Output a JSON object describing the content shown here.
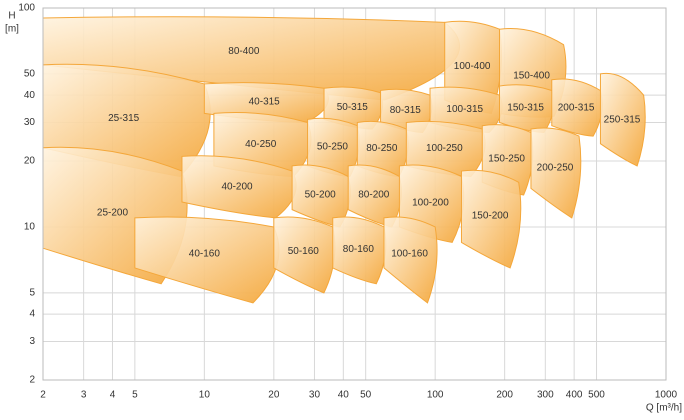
{
  "chart_data": {
    "type": "region-map",
    "ylabel": [
      "H",
      "[m]"
    ],
    "xlabel": "Q [m³/h]",
    "xscale": "log",
    "yscale": "log",
    "grid": true,
    "color": "#f4a73a",
    "xlim": [
      2,
      1000
    ],
    "xticks": [
      2,
      3,
      4,
      5,
      10,
      20,
      30,
      40,
      50,
      100,
      200,
      300,
      400,
      500,
      1000
    ],
    "ylim": [
      2,
      100
    ],
    "yticks": [
      2,
      3,
      4,
      5,
      10,
      20,
      30,
      40,
      50,
      100
    ],
    "regions": [
      {
        "label": "80-400",
        "q": [
          2,
          110
        ],
        "h_top": [
          90,
          86
        ],
        "h_bottom": [
          55,
          38
        ]
      },
      {
        "label": "100-400",
        "q": [
          110,
          190
        ],
        "h_top": [
          86,
          80
        ],
        "h_bottom": [
          38,
          33
        ]
      },
      {
        "label": "150-400",
        "q": [
          190,
          360
        ],
        "h_top": [
          80,
          68
        ],
        "h_bottom": [
          33,
          32
        ]
      },
      {
        "label": "25-315",
        "q": [
          2,
          10
        ],
        "h_top": [
          55,
          45
        ],
        "h_bottom": [
          23,
          17
        ]
      },
      {
        "label": "40-315",
        "q": [
          10,
          33
        ],
        "h_top": [
          45,
          43
        ],
        "h_bottom": [
          33,
          30
        ]
      },
      {
        "label": "50-315",
        "q": [
          33,
          58
        ],
        "h_top": [
          43,
          41
        ],
        "h_bottom": [
          31,
          28
        ]
      },
      {
        "label": "80-315",
        "q": [
          58,
          95
        ],
        "h_top": [
          42,
          40
        ],
        "h_bottom": [
          30,
          27
        ]
      },
      {
        "label": "100-315",
        "q": [
          95,
          190
        ],
        "h_top": [
          43,
          40
        ],
        "h_bottom": [
          30,
          27
        ]
      },
      {
        "label": "150-315",
        "q": [
          190,
          320
        ],
        "h_top": [
          44,
          42
        ],
        "h_bottom": [
          30,
          27
        ]
      },
      {
        "label": "200-315",
        "q": [
          320,
          520
        ],
        "h_top": [
          47,
          42
        ],
        "h_bottom": [
          29,
          26
        ]
      },
      {
        "label": "250-315",
        "q": [
          520,
          800
        ],
        "h_top": [
          50,
          40
        ],
        "h_bottom": [
          24,
          19
        ]
      },
      {
        "label": "40-250",
        "q": [
          11,
          28
        ],
        "h_top": [
          33,
          30
        ],
        "h_bottom": [
          19,
          17
        ]
      },
      {
        "label": "50-250",
        "q": [
          28,
          46
        ],
        "h_top": [
          31,
          29
        ],
        "h_bottom": [
          19,
          17
        ]
      },
      {
        "label": "80-250",
        "q": [
          46,
          75
        ],
        "h_top": [
          30,
          28
        ],
        "h_bottom": [
          19,
          17
        ]
      },
      {
        "label": "100-250",
        "q": [
          75,
          160
        ],
        "h_top": [
          30,
          28
        ],
        "h_bottom": [
          19,
          17
        ]
      },
      {
        "label": "150-250",
        "q": [
          160,
          260
        ],
        "h_top": [
          29,
          27
        ],
        "h_bottom": [
          16,
          14
        ]
      },
      {
        "label": "200-250",
        "q": [
          260,
          420
        ],
        "h_top": [
          28,
          26
        ],
        "h_bottom": [
          15,
          11
        ]
      },
      {
        "label": "25-200",
        "q": [
          2,
          8
        ],
        "h_top": [
          23,
          18
        ],
        "h_bottom": [
          8,
          5.5
        ]
      },
      {
        "label": "40-200",
        "q": [
          8,
          24
        ],
        "h_top": [
          21,
          18
        ],
        "h_bottom": [
          13,
          11
        ]
      },
      {
        "label": "50-200",
        "q": [
          24,
          42
        ],
        "h_top": [
          19,
          17
        ],
        "h_bottom": [
          12,
          10
        ]
      },
      {
        "label": "80-200",
        "q": [
          42,
          70
        ],
        "h_top": [
          19,
          17
        ],
        "h_bottom": [
          12,
          10
        ]
      },
      {
        "label": "100-200",
        "q": [
          70,
          130
        ],
        "h_top": [
          19,
          17
        ],
        "h_bottom": [
          10,
          8.5
        ]
      },
      {
        "label": "150-200",
        "q": [
          130,
          230
        ],
        "h_top": [
          18,
          16
        ],
        "h_bottom": [
          8.5,
          6.5
        ]
      },
      {
        "label": "40-160",
        "q": [
          5,
          20
        ],
        "h_top": [
          11,
          10
        ],
        "h_bottom": [
          6.5,
          4.5
        ]
      },
      {
        "label": "50-160",
        "q": [
          20,
          36
        ],
        "h_top": [
          11,
          10
        ],
        "h_bottom": [
          6.5,
          5
        ]
      },
      {
        "label": "80-160",
        "q": [
          36,
          60
        ],
        "h_top": [
          11,
          10
        ],
        "h_bottom": [
          6.5,
          5.5
        ]
      },
      {
        "label": "100-160",
        "q": [
          60,
          100
        ],
        "h_top": [
          11,
          10
        ],
        "h_bottom": [
          6.5,
          4.5
        ]
      }
    ]
  }
}
